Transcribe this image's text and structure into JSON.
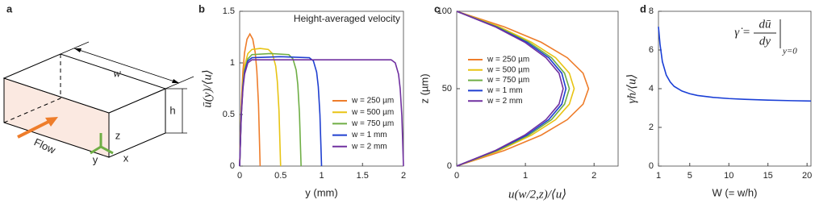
{
  "diagram": {
    "panel": "a",
    "w": "w",
    "h": "h",
    "flow": "Flow",
    "z": "z",
    "y": "y",
    "x": "x"
  },
  "chart_data": [
    {
      "panel": "b",
      "type": "line",
      "annotation": "Height-averaged velocity",
      "xlabel": "y (mm)",
      "ylabel": "ū(y)/⟨u⟩",
      "xlim": [
        0,
        2
      ],
      "xticks": [
        0,
        0.5,
        1,
        1.5,
        2
      ],
      "ylim": [
        0,
        1.5
      ],
      "yticks": [
        0,
        0.5,
        1,
        1.5
      ],
      "series": [
        {
          "name": "w = 250 µm",
          "color": "#ee7d2b",
          "x": [
            0,
            0.02,
            0.04,
            0.06,
            0.09,
            0.125,
            0.16,
            0.19,
            0.21,
            0.23,
            0.25
          ],
          "values": [
            0,
            0.6,
            0.92,
            1.1,
            1.23,
            1.28,
            1.23,
            1.1,
            0.92,
            0.6,
            0
          ]
        },
        {
          "name": "w = 500 µm",
          "color": "#e8c414",
          "x": [
            0,
            0.02,
            0.04,
            0.06,
            0.1,
            0.15,
            0.25,
            0.35,
            0.4,
            0.44,
            0.46,
            0.48,
            0.5
          ],
          "values": [
            0,
            0.54,
            0.82,
            0.97,
            1.09,
            1.13,
            1.14,
            1.13,
            1.09,
            0.97,
            0.82,
            0.54,
            0
          ]
        },
        {
          "name": "w = 750 µm",
          "color": "#6fae45",
          "x": [
            0,
            0.02,
            0.04,
            0.06,
            0.1,
            0.15,
            0.375,
            0.6,
            0.65,
            0.69,
            0.71,
            0.73,
            0.75
          ],
          "values": [
            0,
            0.51,
            0.79,
            0.93,
            1.04,
            1.08,
            1.09,
            1.08,
            1.04,
            0.93,
            0.79,
            0.51,
            0
          ]
        },
        {
          "name": "w = 1 mm",
          "color": "#1f3fd0",
          "x": [
            0,
            0.02,
            0.04,
            0.06,
            0.1,
            0.15,
            0.5,
            0.85,
            0.9,
            0.94,
            0.96,
            0.98,
            1
          ],
          "values": [
            0,
            0.5,
            0.77,
            0.91,
            1.02,
            1.05,
            1.06,
            1.05,
            1.02,
            0.91,
            0.77,
            0.5,
            0
          ]
        },
        {
          "name": "w = 2 mm",
          "color": "#7030a0",
          "x": [
            0,
            0.02,
            0.04,
            0.06,
            0.1,
            0.15,
            1,
            1.85,
            1.9,
            1.94,
            1.96,
            1.98,
            2
          ],
          "values": [
            0,
            0.49,
            0.75,
            0.89,
            1.0,
            1.03,
            1.03,
            1.03,
            1.0,
            0.89,
            0.75,
            0.49,
            0
          ]
        }
      ]
    },
    {
      "panel": "c",
      "type": "line",
      "xlabel": "u(w/2,z)/⟨u⟩",
      "ylabel": "z (µm)",
      "xlim": [
        0,
        2.35
      ],
      "xticks": [
        0,
        1,
        2
      ],
      "ylim": [
        0,
        100
      ],
      "yticks": [
        0,
        50,
        100
      ],
      "y": [
        0,
        10,
        20,
        30,
        40,
        50,
        60,
        70,
        80,
        90,
        100
      ],
      "series": [
        {
          "name": "w = 250 µm",
          "color": "#ee7d2b",
          "values": [
            0,
            0.69,
            1.23,
            1.61,
            1.84,
            1.92,
            1.84,
            1.61,
            1.23,
            0.69,
            0
          ]
        },
        {
          "name": "w = 500 µm",
          "color": "#e8c414",
          "values": [
            0,
            0.62,
            1.09,
            1.44,
            1.64,
            1.71,
            1.64,
            1.44,
            1.09,
            0.62,
            0
          ]
        },
        {
          "name": "w = 750 µm",
          "color": "#6fae45",
          "values": [
            0,
            0.59,
            1.05,
            1.38,
            1.57,
            1.64,
            1.57,
            1.38,
            1.05,
            0.59,
            0
          ]
        },
        {
          "name": "w = 1 mm",
          "color": "#1f3fd0",
          "values": [
            0,
            0.57,
            1.02,
            1.34,
            1.53,
            1.59,
            1.53,
            1.34,
            1.02,
            0.57,
            0
          ]
        },
        {
          "name": "w = 2 mm",
          "color": "#7030a0",
          "values": [
            0,
            0.56,
            0.99,
            1.3,
            1.49,
            1.55,
            1.49,
            1.3,
            0.99,
            0.56,
            0
          ]
        }
      ]
    },
    {
      "panel": "d",
      "type": "line",
      "xlabel": "W (= w/h)",
      "ylabel": "γ̇h/⟨u⟩",
      "formula": {
        "lhs": "γ̇ =",
        "num": "dū",
        "den": "dy",
        "sub": "y=0"
      },
      "xlim": [
        1,
        20.5
      ],
      "xticks": [
        1,
        5,
        10,
        15,
        20
      ],
      "ylim": [
        0,
        8
      ],
      "yticks": [
        0,
        2,
        4,
        6,
        8
      ],
      "x": [
        1,
        1.2,
        1.5,
        2,
        2.5,
        3,
        4,
        5,
        6,
        8,
        10,
        12,
        15,
        18,
        20.5
      ],
      "series": [
        {
          "color": "#1a3fd6",
          "values": [
            7.2,
            6.3,
            5.4,
            4.7,
            4.35,
            4.12,
            3.88,
            3.74,
            3.65,
            3.55,
            3.49,
            3.45,
            3.41,
            3.38,
            3.36
          ]
        }
      ]
    }
  ]
}
